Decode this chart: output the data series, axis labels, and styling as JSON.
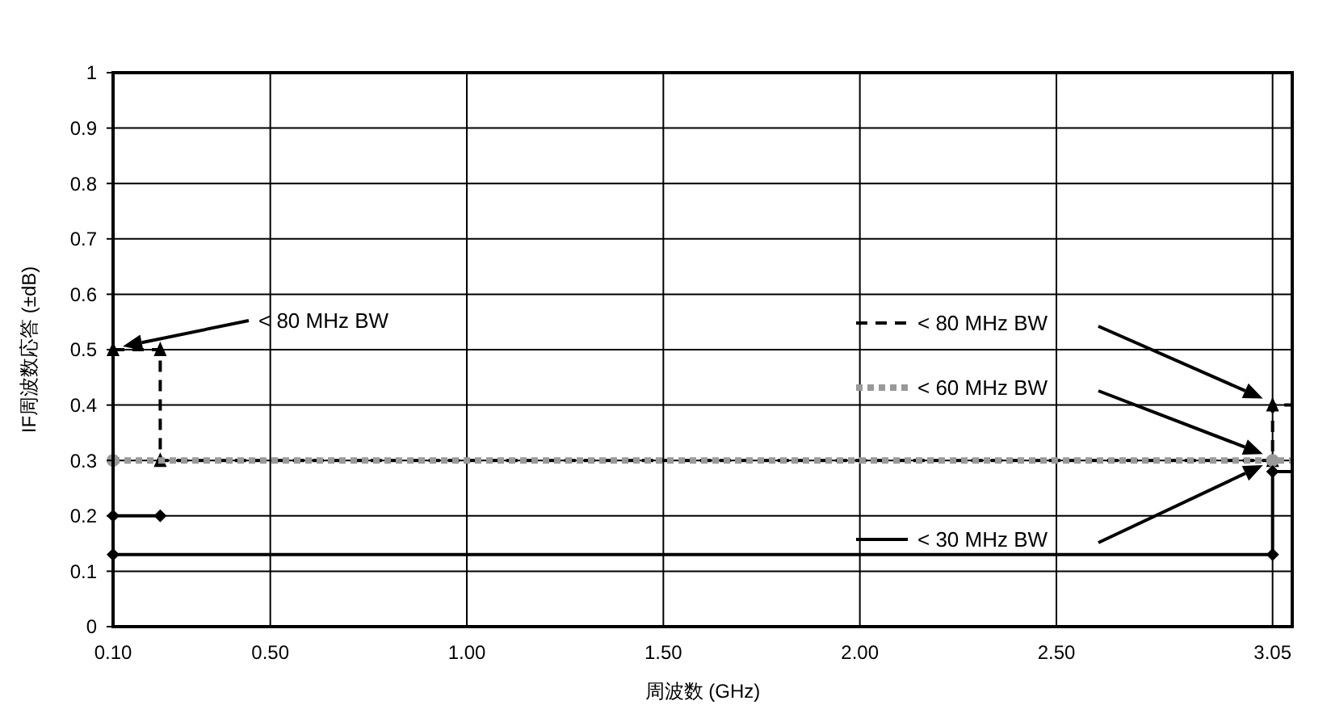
{
  "chart_data": {
    "type": "line",
    "xlabel": "周波数 (GHz)",
    "ylabel": "IF周波数応答 (±dB)",
    "xlim": [
      0.1,
      3.1
    ],
    "ylim": [
      0,
      1
    ],
    "xticks": [
      {
        "value": 0.1,
        "label": "0.10"
      },
      {
        "value": 0.5,
        "label": "0.50"
      },
      {
        "value": 1,
        "label": "1.00"
      },
      {
        "value": 1.5,
        "label": "1.50"
      },
      {
        "value": 2,
        "label": "2.00"
      },
      {
        "value": 2.5,
        "label": "2.50"
      },
      {
        "value": 3.05,
        "label": "3.05"
      }
    ],
    "yticks": [
      0,
      0.1,
      0.2,
      0.3,
      0.4,
      0.5,
      0.6,
      0.7,
      0.8,
      0.9,
      1
    ],
    "grid": true,
    "legend": "right",
    "series": [
      {
        "name": "< 80 MHz BW",
        "color": "#000000",
        "line_style": "dashed",
        "marker": "triangle",
        "x": [
          0.1,
          0.22,
          0.22,
          3.05,
          3.05,
          3.1
        ],
        "values": [
          0.5,
          0.5,
          0.3,
          0.3,
          0.4,
          0.4
        ]
      },
      {
        "name": "< 60 MHz BW",
        "color": "#999999",
        "line_style": "dotted",
        "marker": "circle",
        "x": [
          0.1,
          3.05,
          3.1
        ],
        "values": [
          0.3,
          0.3,
          0.3
        ]
      },
      {
        "name": "< 30 MHz BW",
        "color": "#000000",
        "line_style": "solid",
        "marker": "diamond",
        "x": [
          0.1,
          0.22,
          null,
          0.1,
          3.05,
          3.05,
          3.1
        ],
        "values": [
          0.2,
          0.2,
          null,
          0.13,
          0.13,
          0.28,
          0.28
        ]
      }
    ],
    "annotations": [
      "< 80 MHz BW"
    ]
  }
}
